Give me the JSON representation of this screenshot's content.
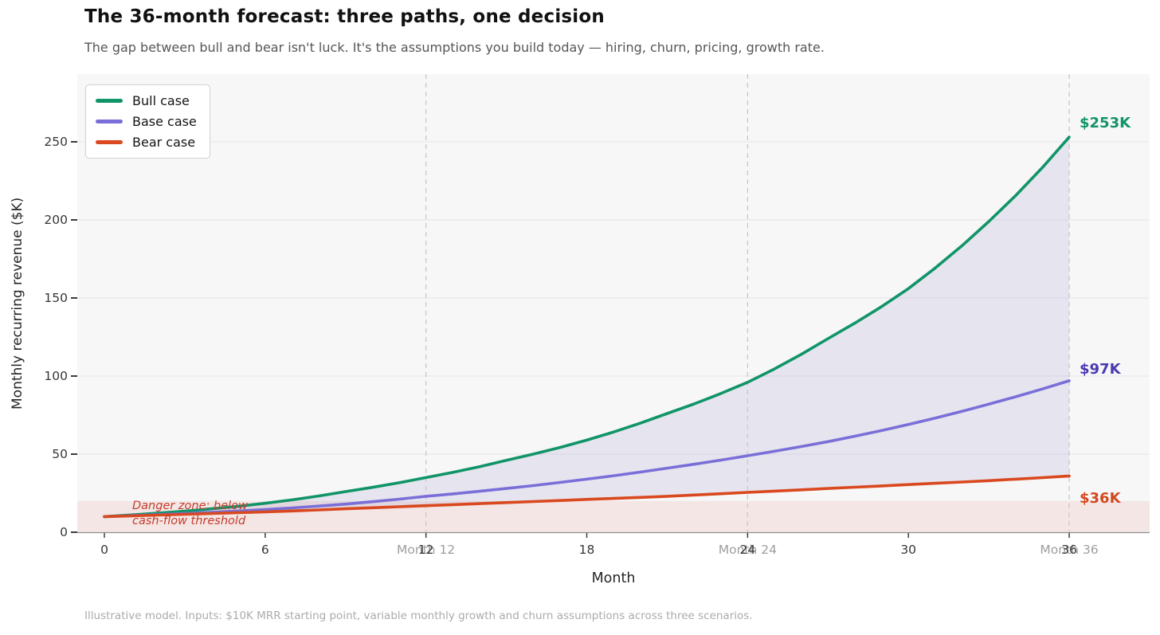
{
  "header": {
    "title": "The 36-month forecast: three paths, one decision",
    "subtitle": "The gap between bull and bear isn't luck. It's the assumptions you build today — hiring, churn, pricing, growth rate."
  },
  "footer": {
    "note": "Illustrative model. Inputs: $10K MRR starting point, variable monthly growth and churn assumptions across three scenarios."
  },
  "chart_data": {
    "type": "line",
    "title": "The 36-month forecast: three paths, one decision",
    "xlabel": "Month",
    "ylabel": "Monthly recurring revenue ($K)",
    "x": [
      0,
      3,
      6,
      9,
      12,
      15,
      18,
      21,
      24,
      27,
      30,
      33,
      36
    ],
    "series": [
      {
        "name": "Bull case",
        "color": "#119468",
        "values": [
          10,
          13.5,
          18.5,
          26,
          35,
          46,
          59,
          76,
          96,
          124,
          156,
          199,
          253
        ],
        "end_label": "$253K",
        "end_label_color": "#119468"
      },
      {
        "name": "Base case",
        "color": "#7a6fd8",
        "values": [
          10,
          12,
          14.5,
          18,
          23,
          28,
          34,
          41,
          49,
          58,
          69,
          82,
          97
        ],
        "end_label": "$97K",
        "end_label_color": "#4a3ab1"
      },
      {
        "name": "Bear case",
        "color": "#d9481e",
        "values": [
          10,
          11.5,
          13,
          15,
          17,
          19,
          21,
          23,
          25.5,
          28,
          30.5,
          33,
          36
        ],
        "end_label": "$36K",
        "end_label_color": "#d2491e"
      }
    ],
    "xticks": [
      0,
      6,
      12,
      18,
      24,
      30,
      36
    ],
    "yticks": [
      0,
      50,
      100,
      150,
      200,
      250
    ],
    "xlim": [
      -1,
      39
    ],
    "ylim": [
      0,
      293
    ],
    "grid": true,
    "legend_position": "upper left",
    "milestones": {
      "months": [
        12,
        24,
        36
      ],
      "labels": [
        "Month 12",
        "Month 24",
        "Month 36"
      ],
      "line_style": "dashed",
      "line_color": "#c9c9cc"
    },
    "gap_fill": {
      "between": [
        "Bull case",
        "Bear case"
      ],
      "color": "#7570b3",
      "opacity": 0.13
    },
    "danger_zone": {
      "below": 20,
      "color": "#e1482f",
      "opacity": 0.09,
      "label_line1": "Danger zone: below",
      "label_line2": "cash-flow threshold"
    }
  }
}
